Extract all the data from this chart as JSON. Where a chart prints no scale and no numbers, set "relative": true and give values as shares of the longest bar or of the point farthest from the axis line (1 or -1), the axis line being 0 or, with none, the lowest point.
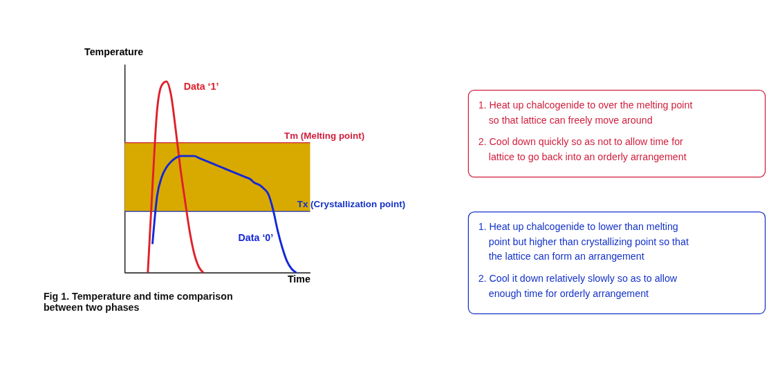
{
  "chart_data": {
    "type": "line",
    "relative": true,
    "xlabel": "Time",
    "ylabel": "Temperature",
    "categories": [
      null,
      null,
      null,
      null,
      null,
      null,
      null,
      null,
      null,
      null,
      null,
      null,
      null,
      null,
      null,
      null,
      null,
      null,
      null,
      null,
      null,
      null,
      null,
      null,
      null,
      null,
      null,
      null,
      null,
      null,
      null,
      null,
      null,
      null,
      null,
      null,
      null,
      null,
      null,
      null,
      null
    ],
    "series": [
      {
        "name": "Data ‘1’",
        "color": "#e0202c",
        "values": [
          null,
          null,
          null,
          null,
          null,
          0,
          0.45,
          0.85,
          0.98,
          1.0,
          0.93,
          0.75,
          0.55,
          0.38,
          0.22,
          0.1,
          0.03,
          0,
          null,
          null,
          null,
          null,
          null,
          null,
          null,
          null,
          null,
          null,
          null,
          null,
          null,
          null,
          null,
          null,
          null,
          null,
          null,
          null,
          null,
          null,
          null
        ]
      },
      {
        "name": "Data ‘0’",
        "color": "#1428d8",
        "values": [
          null,
          null,
          null,
          null,
          null,
          null,
          0.15,
          0.4,
          0.5,
          0.55,
          0.58,
          0.6,
          0.61,
          0.61,
          0.61,
          0.61,
          0.6,
          0.59,
          0.58,
          0.57,
          0.56,
          0.55,
          0.54,
          0.53,
          0.52,
          0.51,
          0.5,
          0.49,
          0.47,
          0.46,
          0.44,
          0.41,
          0.33,
          0.22,
          0.13,
          0.06,
          0.02,
          0,
          null,
          null,
          null
        ]
      }
    ],
    "bands": [
      {
        "axis": "y",
        "from": 0.32,
        "to": 0.68,
        "color": "#d8aa00"
      }
    ],
    "ref_lines": [
      {
        "axis": "y",
        "value": 0.68,
        "label": "Tm (Melting point)",
        "color": "#d01e3c"
      },
      {
        "axis": "y",
        "value": 0.32,
        "label": "Tx (Crystallization point)",
        "color": "#1432c8"
      }
    ],
    "annotations": [
      "Fig 1. Temperature and time comparison between two phases",
      "1. Heat up chalcogenide to over the melting point so that lattice can freely move around",
      "2. Cool down quickly so as not to allow time for lattice to go back into an orderly arrangement",
      "1. Heat up chalcogenide to lower than melting point but higher than crystallizing point so that the lattice can form an arrangement",
      "2. Cool it down relatively slowly so as to allow enough time for orderly arrangement"
    ],
    "tick_labels": false,
    "grid": false,
    "marker": "none",
    "line_style": "solid"
  }
}
